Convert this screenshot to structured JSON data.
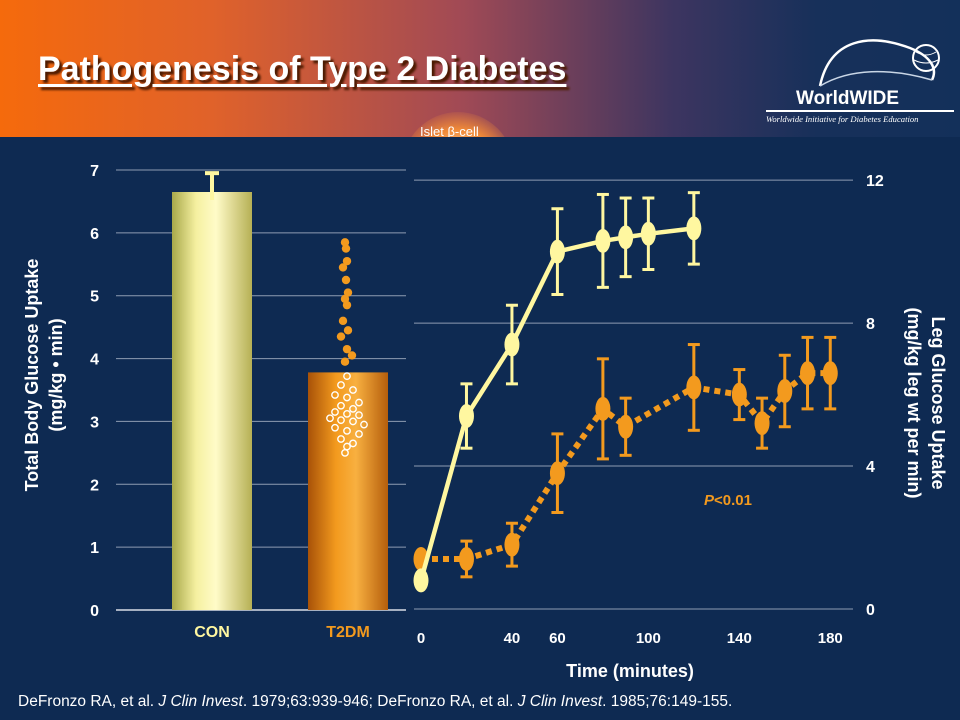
{
  "slide": {
    "title": "Pathogenesis of Type 2 Diabetes",
    "badge_text": "Islet β-cell",
    "logo": {
      "name": "WorldWIDE",
      "tagline": "Worldwide Initiative for Diabetes Education"
    },
    "footer": {
      "a1": "DeFronzo RA, et al. ",
      "j1": "J Clin Invest",
      "v1": ". 1979;63:939-946; DeFronzo RA, et al. ",
      "j2": "J Clin Invest",
      "v2": ". 1985;76:149-155."
    },
    "colors": {
      "header_start": "#f56a0c",
      "header_end": "#13305a",
      "background": "#0e2a52",
      "con": "#fff7a0",
      "t2dm": "#f39a1e"
    }
  },
  "chart_data": [
    {
      "type": "bar",
      "ylabel": "Total Body Glucose Uptake",
      "ylabel2": "(mg/kg • min)",
      "categories": [
        "CON",
        "T2DM"
      ],
      "values": [
        6.65,
        3.78
      ],
      "error_upper": [
        0.3,
        null
      ],
      "ylim": [
        0,
        7
      ],
      "yticks": [
        0,
        1,
        2,
        3,
        4,
        5,
        6,
        7
      ],
      "grid": true,
      "individual_points_t2dm": {
        "filled": [
          5.85,
          5.75,
          5.55,
          5.45,
          5.25,
          5.05,
          4.95,
          4.85,
          4.6,
          4.45,
          4.35,
          4.15,
          4.05,
          3.95
        ],
        "open": [
          3.72,
          3.58,
          3.5,
          3.42,
          3.38,
          3.3,
          3.25,
          3.2,
          3.15,
          3.12,
          3.1,
          3.05,
          3.02,
          3.0,
          2.95,
          2.9,
          2.85,
          2.8,
          2.72,
          2.65,
          2.6,
          2.5
        ]
      }
    },
    {
      "type": "line",
      "xlabel": "Time (minutes)",
      "ylabel": "Leg Glucose Uptake",
      "ylabel2": "(mg/kg leg wt per min)",
      "xticks": [
        0,
        40,
        60,
        100,
        140,
        180
      ],
      "yticks": [
        0,
        4,
        8,
        12
      ],
      "xlim": [
        0,
        190
      ],
      "ylim": [
        0,
        12.2
      ],
      "annotation": {
        "italic": "P",
        "rest": "<0.01"
      },
      "series": [
        {
          "x": [
            0,
            20,
            40,
            60,
            80,
            90,
            100,
            120
          ],
          "y": [
            0.8,
            5.4,
            7.4,
            10.0,
            10.3,
            10.4,
            10.5,
            10.65
          ],
          "err": [
            0,
            0.9,
            1.1,
            1.2,
            1.3,
            1.1,
            1.0,
            1.0
          ],
          "style": "solid",
          "color": "#fff7a0"
        },
        {
          "x": [
            0,
            20,
            40,
            60,
            80,
            90,
            120,
            140,
            150,
            160,
            170,
            180
          ],
          "y": [
            1.4,
            1.4,
            1.8,
            3.8,
            5.6,
            5.1,
            6.2,
            6.0,
            5.2,
            6.1,
            6.6,
            6.6
          ],
          "err": [
            0,
            0.5,
            0.6,
            1.1,
            1.4,
            0.8,
            1.2,
            0.7,
            0.7,
            1.0,
            1.0,
            1.0
          ],
          "style": "dotted",
          "color": "#f39a1e"
        }
      ]
    }
  ]
}
